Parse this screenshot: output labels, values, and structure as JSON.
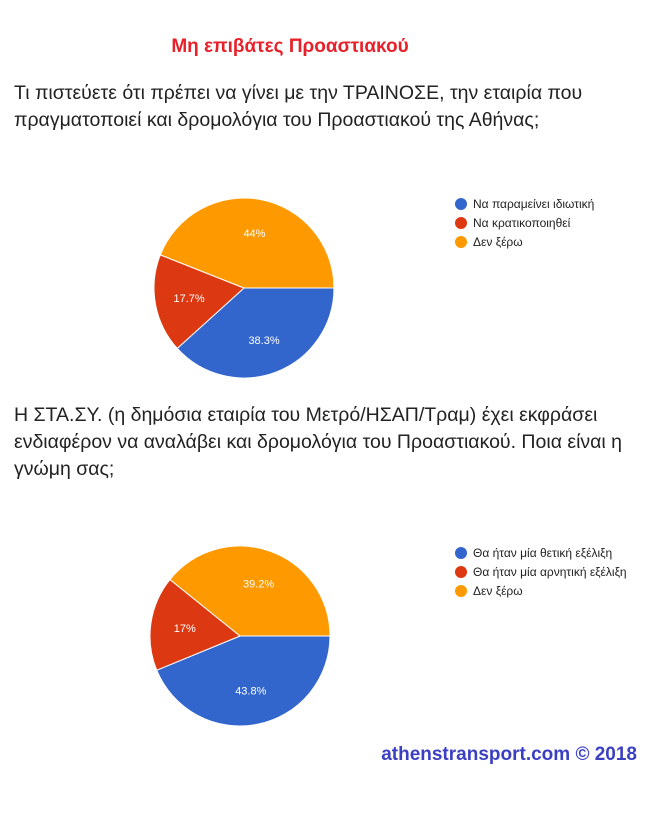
{
  "title": "Μη επιβάτες Προαστιακού",
  "footer": "athenstransport.com © 2018",
  "chart_data": [
    {
      "type": "pie",
      "title": "Τι πιστεύετε ότι πρέπει να γίνει με την ΤΡΑΙΝΟΣΕ, την εταιρία που πραγματοποιεί και δρομολόγια του Προαστιακού της Αθήνας;",
      "categories": [
        "Να παραμείνει ιδιωτική",
        "Να κρατικοποιηθεί",
        "Δεν ξέρω"
      ],
      "values": [
        38.3,
        17.7,
        44
      ],
      "labels": [
        "38.3%",
        "17.7%",
        "44%"
      ],
      "colors": [
        "#3366cc",
        "#dc3912",
        "#ff9900"
      ],
      "legend": "right"
    },
    {
      "type": "pie",
      "title": "Η ΣΤΑ.ΣΥ. (η δημόσια εταιρία του Μετρό/ΗΣΑΠ/Τραμ) έχει εκφράσει ενδιαφέρον να αναλάβει και δρομολόγια του Προαστιακού. Ποια είναι η γνώμη σας;",
      "categories": [
        "Θα ήταν μία θετική εξέλιξη",
        "Θα ήταν μία αρνητική εξέλιξη",
        "Δεν ξέρω"
      ],
      "values": [
        43.8,
        17,
        39.2
      ],
      "labels": [
        "43.8%",
        "17%",
        "39.2%"
      ],
      "colors": [
        "#3366cc",
        "#dc3912",
        "#ff9900"
      ],
      "legend": "right"
    }
  ]
}
